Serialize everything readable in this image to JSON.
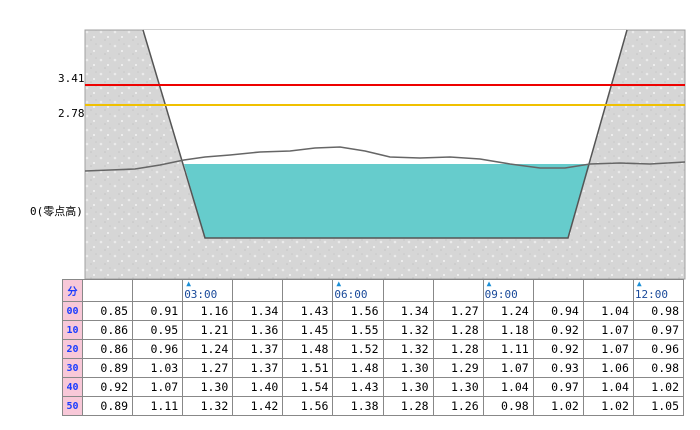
{
  "levels": {
    "warning": "3.41",
    "caution": "2.78",
    "zero": "0(零点高)"
  },
  "colors": {
    "ground": "#d4d4d4",
    "water": "#66cccc",
    "warning_line": "#ee0000",
    "caution_line": "#f0c000",
    "header_pink": "#f8c8d8",
    "minute_text": "#1a3cff",
    "time_text": "#1a4a9a",
    "tick_marker": "#1b8fd6"
  },
  "table": {
    "minute_header": "分",
    "time_marks": [
      "03:00",
      "06:00",
      "09:00",
      "12:00"
    ],
    "rows": [
      {
        "minute": "00",
        "values": [
          "0.85",
          "0.91",
          "1.16",
          "1.34",
          "1.43",
          "1.56",
          "1.34",
          "1.27",
          "1.24",
          "0.94",
          "1.04",
          "0.98"
        ]
      },
      {
        "minute": "10",
        "values": [
          "0.86",
          "0.95",
          "1.21",
          "1.36",
          "1.45",
          "1.55",
          "1.32",
          "1.28",
          "1.18",
          "0.92",
          "1.07",
          "0.97"
        ]
      },
      {
        "minute": "20",
        "values": [
          "0.86",
          "0.96",
          "1.24",
          "1.37",
          "1.48",
          "1.52",
          "1.32",
          "1.28",
          "1.11",
          "0.92",
          "1.07",
          "0.96"
        ]
      },
      {
        "minute": "30",
        "values": [
          "0.89",
          "1.03",
          "1.27",
          "1.37",
          "1.51",
          "1.48",
          "1.30",
          "1.29",
          "1.07",
          "0.93",
          "1.06",
          "0.98"
        ]
      },
      {
        "minute": "40",
        "values": [
          "0.92",
          "1.07",
          "1.30",
          "1.40",
          "1.54",
          "1.43",
          "1.30",
          "1.30",
          "1.04",
          "0.97",
          "1.04",
          "1.02"
        ]
      },
      {
        "minute": "50",
        "values": [
          "0.89",
          "1.11",
          "1.32",
          "1.42",
          "1.56",
          "1.38",
          "1.28",
          "1.26",
          "0.98",
          "1.02",
          "1.02",
          "1.05"
        ]
      }
    ]
  }
}
